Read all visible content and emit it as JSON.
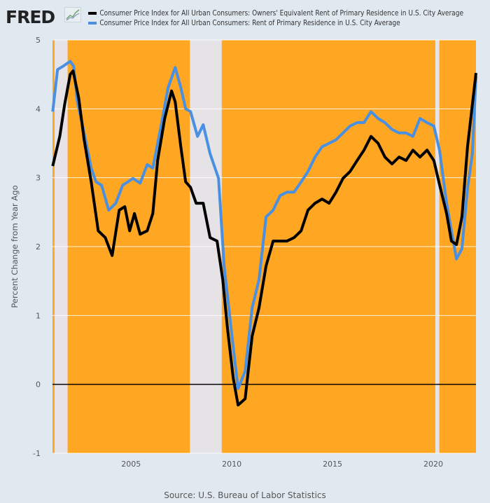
{
  "logo": {
    "text": "FRED",
    "icon": "line-chart-icon"
  },
  "chart_data": {
    "type": "line",
    "title": "",
    "xlabel": "",
    "ylabel": "Percent Change from Year Ago",
    "xlim": [
      2001.1,
      2022.12
    ],
    "ylim": [
      -1,
      5
    ],
    "x_ticks": [
      2005,
      2010,
      2015,
      2020
    ],
    "x_tick_labels": [
      "2005",
      "2010",
      "2015",
      "2020"
    ],
    "y_ticks": [
      -1,
      0,
      1,
      2,
      3,
      4,
      5
    ],
    "y_tick_labels": [
      "-1",
      "0",
      "1",
      "2",
      "3",
      "4",
      "5"
    ],
    "grid": true,
    "legend_position": "top",
    "plot_background": "#FFA622",
    "recession_color": "#E6E3E6",
    "recessions": [
      [
        2001.2,
        2001.85
      ],
      [
        2007.92,
        2009.5
      ],
      [
        2020.1,
        2020.3
      ]
    ],
    "series": [
      {
        "name": "Consumer Price Index for All Urban Consumers: Owners' Equivalent Rent of Primary Residence in U.S. City Average",
        "color": "#000000",
        "x": [
          2001.11,
          2001.46,
          2001.7,
          2001.98,
          2002.12,
          2002.4,
          2002.67,
          2003.02,
          2003.37,
          2003.72,
          2004.06,
          2004.41,
          2004.69,
          2004.93,
          2005.17,
          2005.45,
          2005.8,
          2006.08,
          2006.32,
          2006.67,
          2007.01,
          2007.19,
          2007.47,
          2007.71,
          2007.95,
          2008.23,
          2008.58,
          2008.92,
          2009.27,
          2009.55,
          2009.79,
          2010.07,
          2010.31,
          2010.66,
          2011.01,
          2011.35,
          2011.7,
          2012.05,
          2012.4,
          2012.74,
          2013.09,
          2013.44,
          2013.78,
          2014.13,
          2014.48,
          2014.83,
          2015.17,
          2015.52,
          2015.87,
          2016.22,
          2016.56,
          2016.91,
          2017.26,
          2017.6,
          2017.95,
          2018.3,
          2018.65,
          2018.99,
          2019.34,
          2019.69,
          2020.03,
          2020.31,
          2020.66,
          2020.9,
          2021.15,
          2021.42,
          2021.7,
          2021.94,
          2022.12
        ],
        "y": [
          3.17,
          3.6,
          4.06,
          4.5,
          4.55,
          4.16,
          3.55,
          2.94,
          2.23,
          2.13,
          1.87,
          2.53,
          2.58,
          2.23,
          2.48,
          2.18,
          2.23,
          2.48,
          3.25,
          3.86,
          4.26,
          4.1,
          3.45,
          2.94,
          2.86,
          2.63,
          2.63,
          2.13,
          2.08,
          1.52,
          0.8,
          0.09,
          -0.3,
          -0.21,
          0.7,
          1.11,
          1.72,
          2.08,
          2.08,
          2.08,
          2.13,
          2.23,
          2.53,
          2.63,
          2.69,
          2.63,
          2.79,
          2.99,
          3.09,
          3.25,
          3.4,
          3.6,
          3.5,
          3.3,
          3.2,
          3.3,
          3.25,
          3.4,
          3.3,
          3.4,
          3.25,
          2.9,
          2.48,
          2.08,
          2.03,
          2.43,
          3.45,
          4.06,
          4.52
        ]
      },
      {
        "name": "Consumer Price Index for All Urban Consumers: Rent of Primary Residence in U.S. City Average",
        "color": "#4A90E2",
        "x": [
          2001.11,
          2001.35,
          2001.63,
          2001.98,
          2002.15,
          2002.33,
          2002.67,
          2003.02,
          2003.26,
          2003.54,
          2003.89,
          2004.24,
          2004.58,
          2005.1,
          2005.45,
          2005.8,
          2006.08,
          2006.49,
          2006.84,
          2007.19,
          2007.47,
          2007.71,
          2007.95,
          2008.3,
          2008.58,
          2008.92,
          2009.34,
          2009.62,
          2009.97,
          2010.31,
          2010.66,
          2011.01,
          2011.35,
          2011.7,
          2012.05,
          2012.4,
          2012.74,
          2013.09,
          2013.44,
          2013.78,
          2014.13,
          2014.48,
          2014.83,
          2015.17,
          2015.52,
          2015.87,
          2016.22,
          2016.56,
          2016.91,
          2017.26,
          2017.6,
          2017.95,
          2018.3,
          2018.65,
          2018.99,
          2019.34,
          2019.69,
          2020.03,
          2020.31,
          2020.66,
          2020.9,
          2021.15,
          2021.42,
          2021.7,
          2021.94,
          2022.12
        ],
        "y": [
          3.96,
          4.57,
          4.62,
          4.69,
          4.62,
          4.11,
          3.65,
          3.14,
          2.94,
          2.89,
          2.53,
          2.63,
          2.89,
          2.99,
          2.92,
          3.19,
          3.14,
          3.75,
          4.31,
          4.6,
          4.31,
          4.0,
          3.96,
          3.6,
          3.77,
          3.35,
          2.99,
          1.72,
          0.8,
          -0.06,
          0.19,
          1.11,
          1.52,
          2.43,
          2.53,
          2.74,
          2.79,
          2.79,
          2.94,
          3.09,
          3.3,
          3.45,
          3.5,
          3.55,
          3.65,
          3.75,
          3.8,
          3.8,
          3.96,
          3.86,
          3.8,
          3.7,
          3.65,
          3.65,
          3.6,
          3.86,
          3.8,
          3.75,
          3.4,
          2.63,
          2.23,
          1.82,
          1.97,
          2.84,
          3.35,
          4.47
        ]
      }
    ],
    "source": "Source: U.S. Bureau of Labor Statistics"
  }
}
